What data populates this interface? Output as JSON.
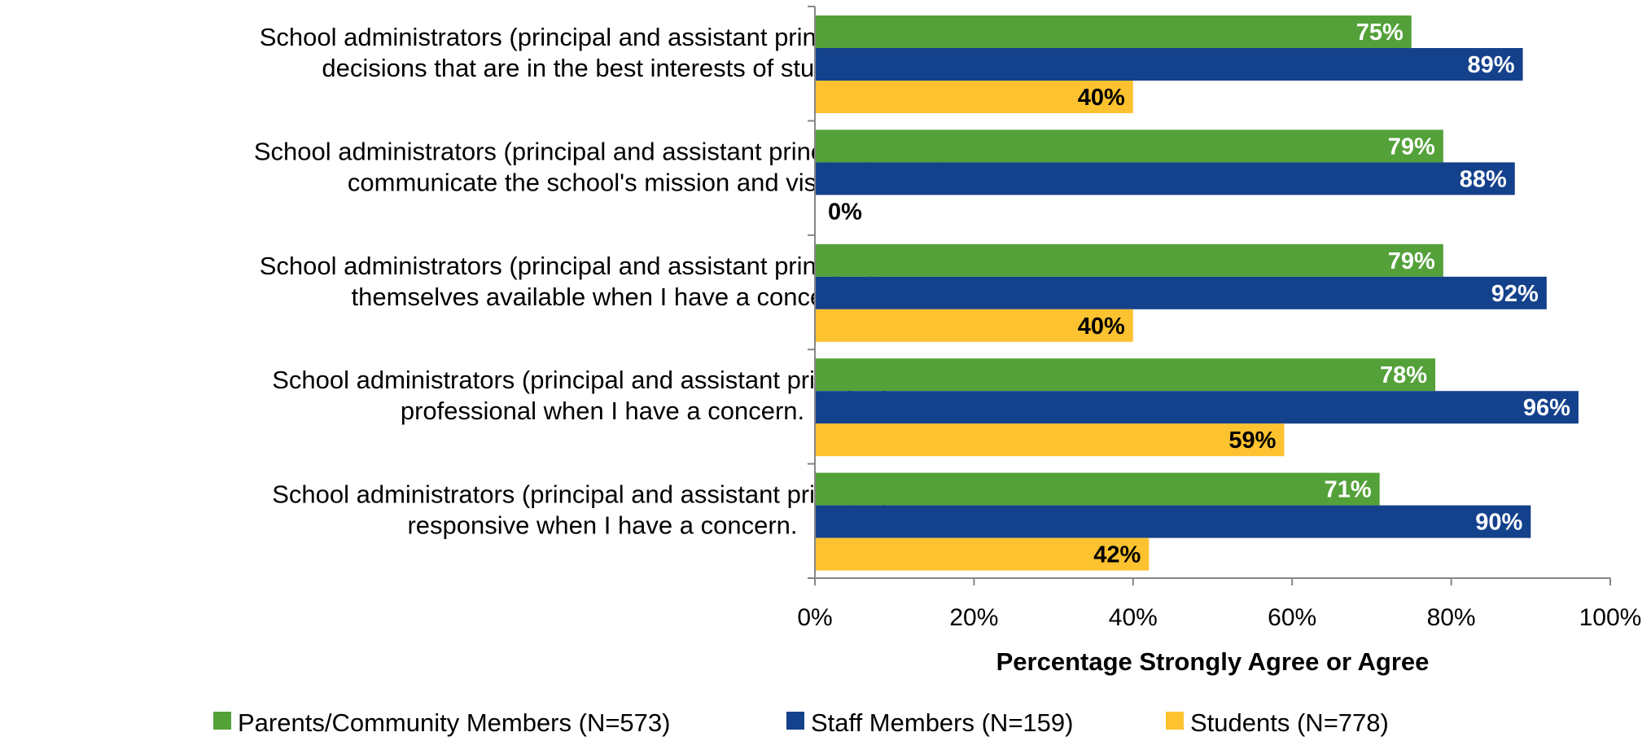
{
  "chart_data": {
    "type": "bar",
    "orientation": "horizontal",
    "categories": [
      [
        "School administrators (principal and assistant principal) make",
        "decisions that are in the best interests of students."
      ],
      [
        "School administrators (principal and assistant principal) clearly",
        "communicate the school's mission and vision."
      ],
      [
        "School administrators (principal and assistant principal) make",
        "themselves available when I have a concern."
      ],
      [
        "School administrators (principal and assistant principal) are",
        "professional when I have a concern."
      ],
      [
        "School administrators (principal and assistant principal) are",
        "responsive when I have a concern."
      ]
    ],
    "series": [
      {
        "name": "Parents/Community Members (N=573)",
        "color": "#54A13A",
        "label_color": "#ffffff",
        "values": [
          75,
          79,
          79,
          78,
          71
        ],
        "labels": [
          "75%",
          "79%",
          "79%",
          "78%",
          "71%"
        ]
      },
      {
        "name": "Staff Members (N=159)",
        "color": "#14418C",
        "label_color": "#ffffff",
        "values": [
          89,
          88,
          92,
          96,
          90
        ],
        "labels": [
          "89%",
          "88%",
          "92%",
          "96%",
          "90%"
        ]
      },
      {
        "name": "Students (N=778)",
        "color": "#FDC22F",
        "label_color": "#000000",
        "values": [
          40,
          0,
          40,
          59,
          42
        ],
        "labels": [
          "40%",
          "0%",
          "40%",
          "59%",
          "42%"
        ]
      }
    ],
    "xlabel": "Percentage Strongly Agree or Agree",
    "xlim": [
      0,
      100
    ],
    "xticks": [
      0,
      20,
      40,
      60,
      80,
      100
    ],
    "xtick_labels": [
      "0%",
      "20%",
      "40%",
      "60%",
      "80%",
      "100%"
    ],
    "grid": false,
    "legend_position": "bottom"
  }
}
